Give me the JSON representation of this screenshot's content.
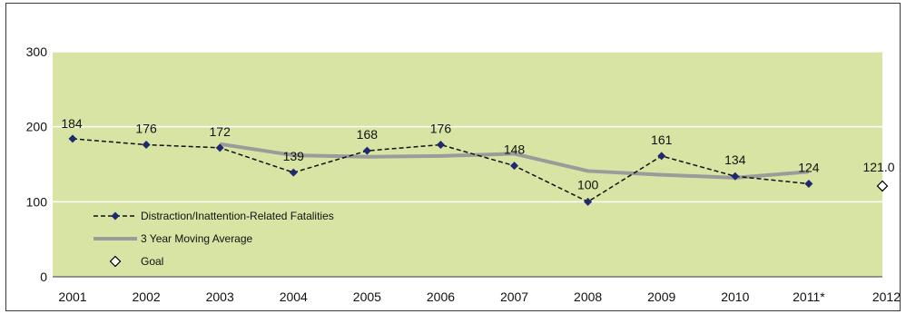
{
  "chart_data": {
    "type": "line",
    "title": "",
    "xlabel": "",
    "ylabel": "",
    "categories": [
      "2001",
      "2002",
      "2003",
      "2004",
      "2005",
      "2006",
      "2007",
      "2008",
      "2009",
      "2010",
      "2011*",
      "2012"
    ],
    "ylim": [
      0,
      300
    ],
    "yticks": [
      "0",
      "100",
      "200",
      "300"
    ],
    "grid": true,
    "legend_position": "bottom-left",
    "series": [
      {
        "name": "Distraction/Inattention-Related Fatalities",
        "style": "dashed-with-diamond-markers",
        "color": "#1f2a6e",
        "values": [
          184,
          176,
          172,
          139,
          168,
          176,
          148,
          100,
          161,
          134,
          124,
          null
        ],
        "labels": [
          "184",
          "176",
          "172",
          "139",
          "168",
          "176",
          "148",
          "100",
          "161",
          "134",
          "124",
          null
        ]
      },
      {
        "name": "3 Year Moving Average",
        "style": "solid-thick",
        "color": "#9b9b9b",
        "values": [
          null,
          null,
          177,
          162,
          160,
          161,
          164,
          141,
          136,
          132,
          140,
          null
        ]
      },
      {
        "name": "Goal",
        "style": "hollow-diamond-marker",
        "color": "#000000",
        "values": [
          null,
          null,
          null,
          null,
          null,
          null,
          null,
          null,
          null,
          null,
          null,
          121.0
        ],
        "labels": [
          null,
          null,
          null,
          null,
          null,
          null,
          null,
          null,
          null,
          null,
          null,
          "121.0"
        ]
      }
    ],
    "colors": {
      "plot_background": "#d7e4a3",
      "gridline": "#ffffff",
      "frame": "#3a3a3a"
    }
  }
}
